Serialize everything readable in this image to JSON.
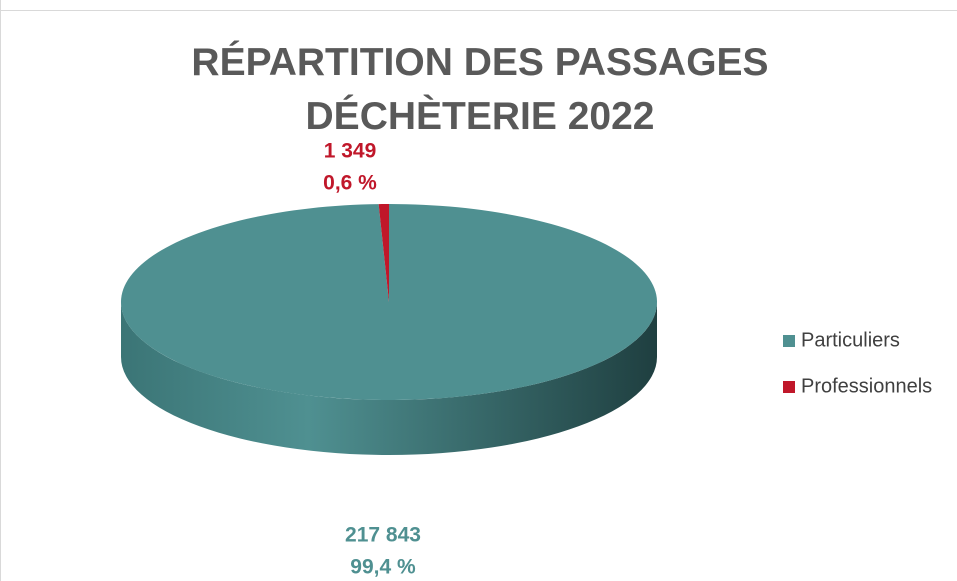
{
  "chart_data": {
    "type": "pie",
    "title": "RÉPARTITION DES PASSAGES DÉCHÈTERIE 2022",
    "categories": [
      "Particuliers",
      "Professionnels"
    ],
    "values": [
      217843,
      1349
    ],
    "value_labels": [
      "217 843",
      "1 349"
    ],
    "percents": [
      99.4,
      0.6
    ],
    "percent_labels": [
      "99,4 %",
      "0,6 %"
    ],
    "colors": [
      "#4f9091",
      "#c0172a"
    ],
    "legend": "right"
  }
}
